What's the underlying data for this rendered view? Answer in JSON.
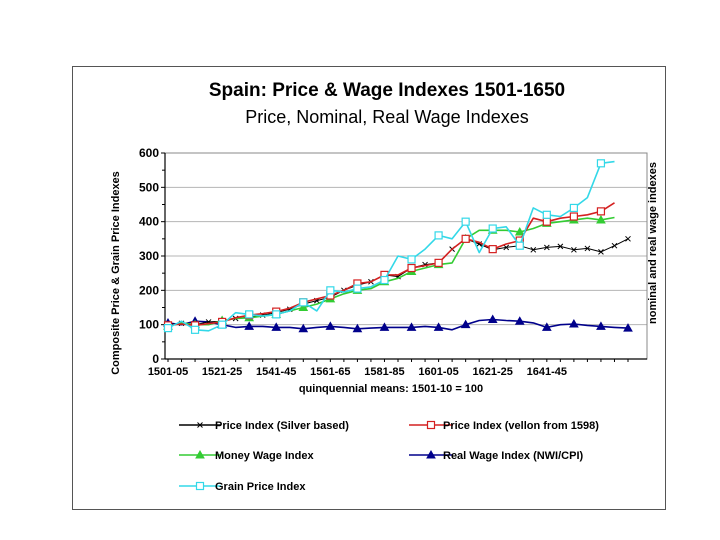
{
  "chart_data": {
    "type": "line",
    "title": "Spain: Price & Wage Indexes 1501-1650",
    "subtitle": "Price, Nominal, Real Wage Indexes",
    "xlabel": "quinquennial means: 1501-10 = 100",
    "ylabel_left": "Composite Price & Grain Price Indexes",
    "ylabel_right": "nominal and real wage indexes",
    "ylim": [
      0,
      600
    ],
    "yticks": [
      "0",
      "100",
      "200",
      "300",
      "400",
      "500",
      "600"
    ],
    "x_tick_labels": [
      "1501-05",
      "1521-25",
      "1541-45",
      "1561-65",
      "1581-85",
      "1601-05",
      "1621-25",
      "1641-45"
    ],
    "grid": true,
    "series": [
      {
        "name": "Price Index (Silver based)",
        "color": "#000000",
        "marker": "x",
        "values": [
          100,
          104,
          100,
          108,
          110,
          118,
          122,
          128,
          135,
          145,
          160,
          170,
          180,
          200,
          215,
          225,
          245,
          240,
          265,
          275,
          280,
          320,
          350,
          335,
          318,
          325,
          330,
          318,
          325,
          328,
          318,
          322,
          312,
          330,
          350
        ]
      },
      {
        "name": "Price Index (vellon from 1598)",
        "color": "#d42020",
        "marker": "square",
        "values": [
          98,
          102,
          98,
          103,
          108,
          120,
          128,
          132,
          138,
          148,
          165,
          175,
          185,
          200,
          220,
          225,
          245,
          245,
          265,
          272,
          280,
          320,
          350,
          340,
          320,
          335,
          345,
          410,
          400,
          410,
          415,
          420,
          430,
          455
        ]
      },
      {
        "name": "Money Wage Index",
        "color": "#33cc33",
        "marker": "triangle",
        "values": [
          95,
          105,
          100,
          100,
          112,
          118,
          120,
          125,
          130,
          140,
          150,
          160,
          175,
          190,
          200,
          205,
          225,
          235,
          255,
          265,
          275,
          280,
          350,
          375,
          375,
          375,
          370,
          380,
          395,
          400,
          405,
          410,
          405,
          412
        ]
      },
      {
        "name": "Real Wage Index (NWI/CPI)",
        "color": "#00008b",
        "marker": "triangle",
        "values": [
          105,
          100,
          110,
          108,
          100,
          92,
          95,
          95,
          92,
          92,
          88,
          92,
          95,
          92,
          88,
          90,
          92,
          92,
          92,
          95,
          92,
          85,
          100,
          112,
          115,
          112,
          110,
          105,
          92,
          100,
          102,
          98,
          95,
          92,
          90
        ]
      },
      {
        "name": "Grain Price Index",
        "color": "#33d8e8",
        "marker": "square",
        "values": [
          90,
          110,
          85,
          82,
          100,
          135,
          130,
          125,
          130,
          140,
          165,
          140,
          200,
          195,
          205,
          210,
          230,
          300,
          290,
          320,
          360,
          350,
          400,
          310,
          380,
          385,
          330,
          440,
          420,
          415,
          440,
          470,
          570,
          575
        ]
      }
    ]
  }
}
